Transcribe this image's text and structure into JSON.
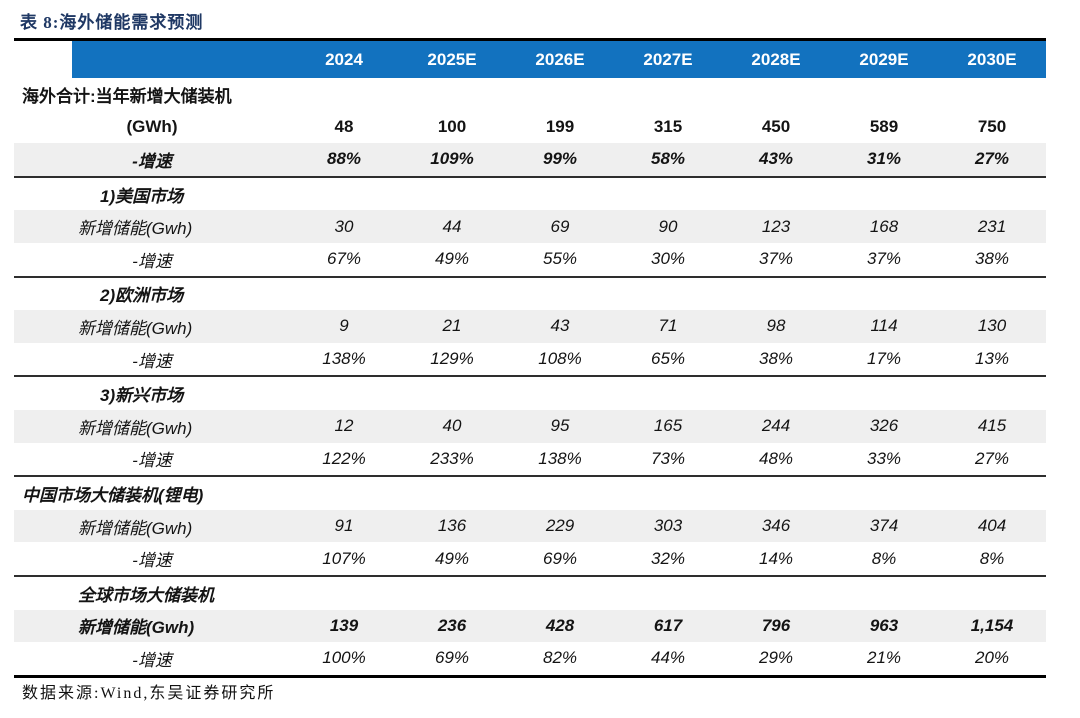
{
  "title": "表 8:海外储能需求预测",
  "columns": [
    "2024",
    "2025E",
    "2026E",
    "2027E",
    "2028E",
    "2029E",
    "2030E"
  ],
  "rows": [
    {
      "label": "海外合计:当年新增大储装机",
      "values": [
        "",
        "",
        "",
        "",
        "",
        "",
        ""
      ],
      "style": "bold",
      "labelAlign": "left",
      "bg": "white"
    },
    {
      "label": "(GWh)",
      "values": [
        "48",
        "100",
        "199",
        "315",
        "450",
        "589",
        "750"
      ],
      "style": "bold",
      "labelAlign": "center",
      "bg": "white"
    },
    {
      "label": "-增速",
      "values": [
        "88%",
        "109%",
        "99%",
        "58%",
        "43%",
        "31%",
        "27%"
      ],
      "style": "bold-italic",
      "labelAlign": "center",
      "bg": "gray",
      "divider": true
    },
    {
      "label": "1)美国市场",
      "values": [
        "",
        "",
        "",
        "",
        "",
        "",
        ""
      ],
      "style": "bold-italic",
      "labelAlign": "indent",
      "bg": "white"
    },
    {
      "label": "新增储能(Gwh)",
      "values": [
        "30",
        "44",
        "69",
        "90",
        "123",
        "168",
        "231"
      ],
      "style": "italic",
      "labelAlign": "indent2",
      "bg": "gray"
    },
    {
      "label": "-增速",
      "values": [
        "67%",
        "49%",
        "55%",
        "30%",
        "37%",
        "37%",
        "38%"
      ],
      "style": "italic",
      "labelAlign": "center",
      "bg": "white",
      "divider": true
    },
    {
      "label": "2)欧洲市场",
      "values": [
        "",
        "",
        "",
        "",
        "",
        "",
        ""
      ],
      "style": "bold-italic",
      "labelAlign": "indent",
      "bg": "white"
    },
    {
      "label": "新增储能(Gwh)",
      "values": [
        "9",
        "21",
        "43",
        "71",
        "98",
        "114",
        "130"
      ],
      "style": "italic",
      "labelAlign": "indent2",
      "bg": "gray"
    },
    {
      "label": "-增速",
      "values": [
        "138%",
        "129%",
        "108%",
        "65%",
        "38%",
        "17%",
        "13%"
      ],
      "style": "italic",
      "labelAlign": "center",
      "bg": "white",
      "divider": true
    },
    {
      "label": "3)新兴市场",
      "values": [
        "",
        "",
        "",
        "",
        "",
        "",
        ""
      ],
      "style": "bold-italic",
      "labelAlign": "indent",
      "bg": "white"
    },
    {
      "label": "新增储能(Gwh)",
      "values": [
        "12",
        "40",
        "95",
        "165",
        "244",
        "326",
        "415"
      ],
      "style": "italic",
      "labelAlign": "indent2",
      "bg": "gray"
    },
    {
      "label": "-增速",
      "values": [
        "122%",
        "233%",
        "138%",
        "73%",
        "48%",
        "33%",
        "27%"
      ],
      "style": "italic",
      "labelAlign": "center",
      "bg": "white",
      "divider": true
    },
    {
      "label": "中国市场大储装机(锂电)",
      "values": [
        "",
        "",
        "",
        "",
        "",
        "",
        ""
      ],
      "style": "bold-italic",
      "labelAlign": "left",
      "bg": "white"
    },
    {
      "label": "新增储能(Gwh)",
      "values": [
        "91",
        "136",
        "229",
        "303",
        "346",
        "374",
        "404"
      ],
      "style": "italic",
      "labelAlign": "indent2",
      "bg": "gray"
    },
    {
      "label": "-增速",
      "values": [
        "107%",
        "49%",
        "69%",
        "32%",
        "14%",
        "8%",
        "8%"
      ],
      "style": "italic",
      "labelAlign": "center",
      "bg": "white",
      "divider": true
    },
    {
      "label": "全球市场大储装机",
      "values": [
        "",
        "",
        "",
        "",
        "",
        "",
        ""
      ],
      "style": "bold-italic",
      "labelAlign": "indent2",
      "bg": "white"
    },
    {
      "label": "新增储能(Gwh)",
      "values": [
        "139",
        "236",
        "428",
        "617",
        "796",
        "963",
        "1,154"
      ],
      "style": "bold-italic",
      "labelAlign": "indent2",
      "bg": "gray"
    },
    {
      "label": "-增速",
      "values": [
        "100%",
        "69%",
        "82%",
        "44%",
        "29%",
        "21%",
        "20%"
      ],
      "style": "italic",
      "labelAlign": "center",
      "bg": "white",
      "thick_divider": true
    }
  ],
  "footer": "数据来源:Wind,东吴证券研究所",
  "colors": {
    "header_bg": "#1272BF",
    "stripe_bg": "#EFEFEF",
    "title_color": "#1F3864",
    "rule_color": "#000000"
  }
}
